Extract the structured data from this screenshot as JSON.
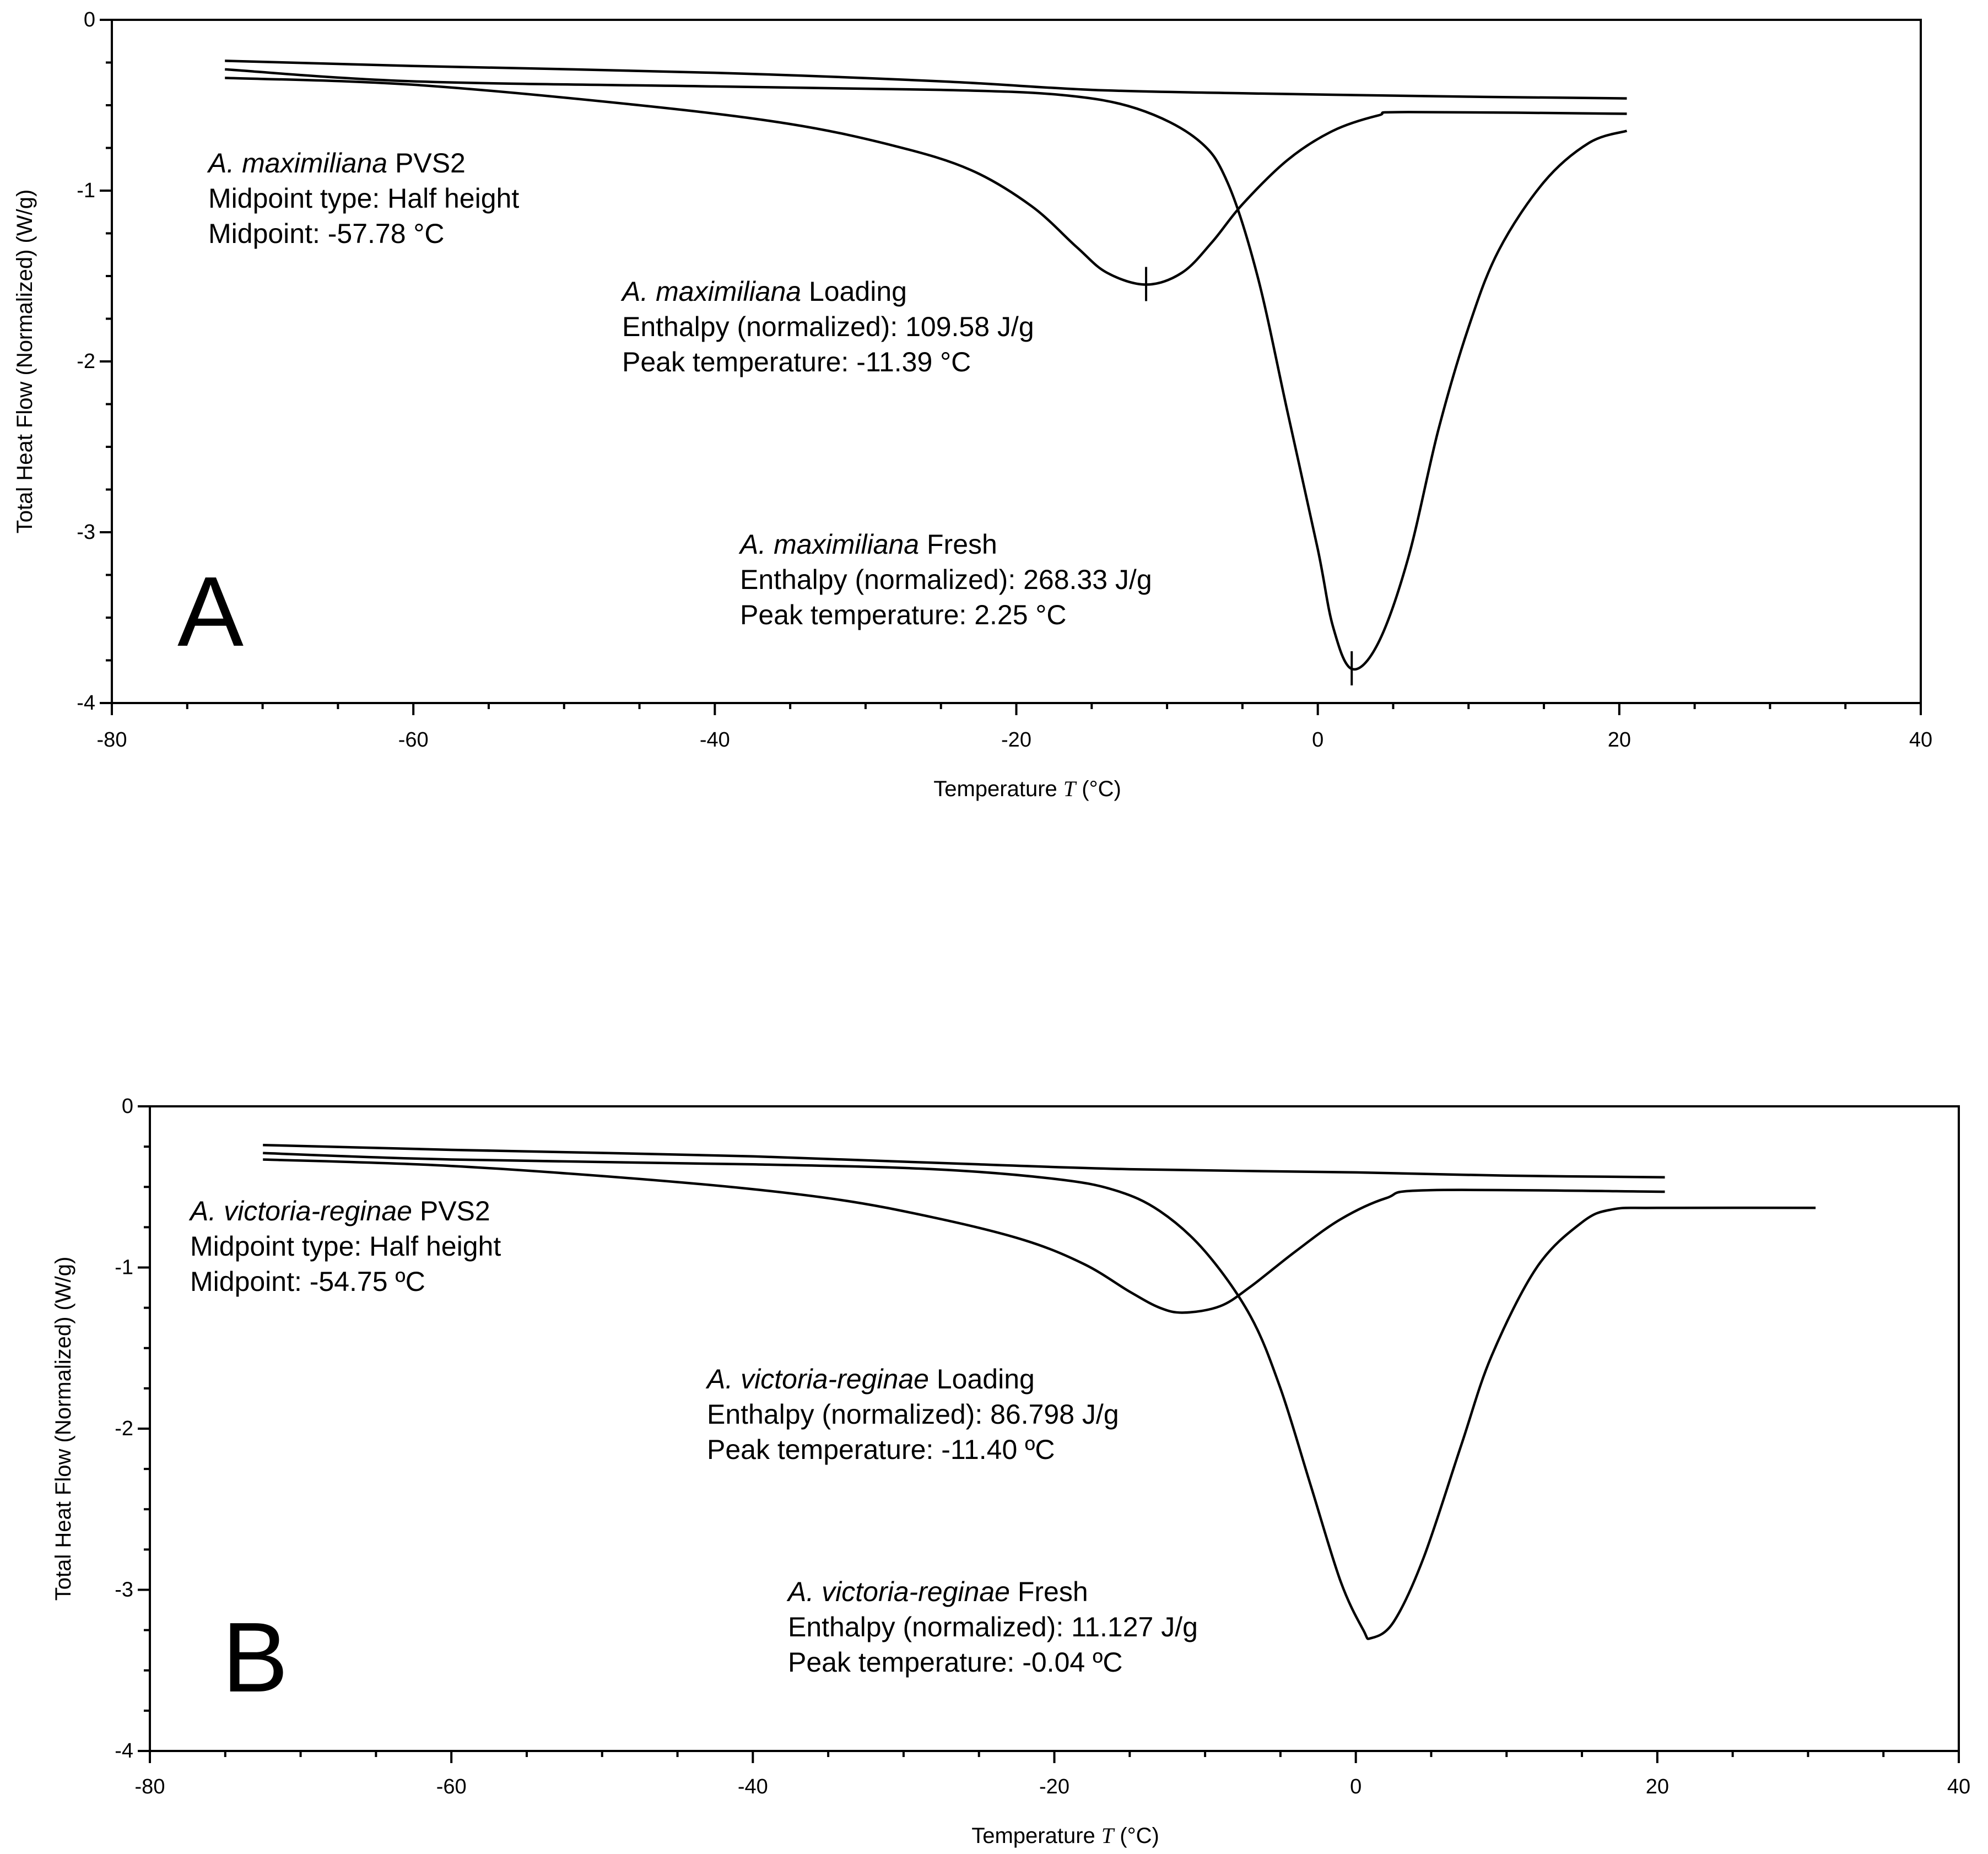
{
  "chart_data": [
    {
      "type": "line",
      "panel_label": "A",
      "xlabel_main": "Temperature",
      "xlabel_symbol": "T",
      "xlabel_unit": "(°C)",
      "ylabel": "Total Heat Flow (Normalized) (W/g)",
      "xlim": [
        -80,
        40
      ],
      "ylim": [
        -4,
        0
      ],
      "xticks": [
        -80,
        -60,
        -40,
        -20,
        0,
        20,
        40
      ],
      "yticks": [
        0,
        -1,
        -2,
        -3,
        -4
      ],
      "grid": false,
      "series": [
        {
          "name": "A. maximiliana PVS2",
          "points": [
            [
              -72.5,
              -0.24
            ],
            [
              -60,
              -0.27
            ],
            [
              -40,
              -0.31
            ],
            [
              -25,
              -0.36
            ],
            [
              -15,
              -0.41
            ],
            [
              -5,
              -0.43
            ],
            [
              10,
              -0.45
            ],
            [
              20.5,
              -0.46
            ]
          ]
        },
        {
          "name": "A. maximiliana Loading",
          "points": [
            [
              -72.5,
              -0.34
            ],
            [
              -60,
              -0.38
            ],
            [
              -45,
              -0.5
            ],
            [
              -35,
              -0.61
            ],
            [
              -28,
              -0.74
            ],
            [
              -23,
              -0.88
            ],
            [
              -19,
              -1.09
            ],
            [
              -16,
              -1.33
            ],
            [
              -14,
              -1.48
            ],
            [
              -11.39,
              -1.55
            ],
            [
              -9,
              -1.48
            ],
            [
              -7,
              -1.3
            ],
            [
              -5,
              -1.08
            ],
            [
              -2,
              -0.82
            ],
            [
              1,
              -0.65
            ],
            [
              4,
              -0.56
            ],
            [
              6,
              -0.54
            ],
            [
              20.5,
              -0.55
            ]
          ]
        },
        {
          "name": "A. maximiliana Fresh",
          "points": [
            [
              -72.5,
              -0.29
            ],
            [
              -60,
              -0.36
            ],
            [
              -40,
              -0.39
            ],
            [
              -25,
              -0.41
            ],
            [
              -17,
              -0.44
            ],
            [
              -12,
              -0.52
            ],
            [
              -8,
              -0.7
            ],
            [
              -6,
              -0.95
            ],
            [
              -4,
              -1.5
            ],
            [
              -2,
              -2.3
            ],
            [
              0,
              -3.1
            ],
            [
              1,
              -3.55
            ],
            [
              2.25,
              -3.8
            ],
            [
              4,
              -3.65
            ],
            [
              6,
              -3.15
            ],
            [
              8,
              -2.4
            ],
            [
              10,
              -1.8
            ],
            [
              12,
              -1.35
            ],
            [
              15,
              -0.95
            ],
            [
              18,
              -0.72
            ],
            [
              20.5,
              -0.65
            ]
          ]
        }
      ],
      "annotations": [
        {
          "title_italic": "A. maximiliana",
          "title_rest": " PVS2",
          "line2": "Midpoint type: Half height",
          "line3": "Midpoint: -57.78 °C"
        },
        {
          "title_italic": "A. maximiliana",
          "title_rest": " Loading",
          "line2": "Enthalpy (normalized): 109.58 J/g",
          "line3": "Peak temperature: -11.39 °C"
        },
        {
          "title_italic": "A. maximiliana",
          "title_rest": " Fresh",
          "line2": "Enthalpy (normalized): 268.33 J/g",
          "line3": "Peak temperature: 2.25 °C"
        }
      ],
      "peak_markers": [
        [
          -11.39,
          -1.55
        ],
        [
          2.25,
          -3.8
        ]
      ]
    },
    {
      "type": "line",
      "panel_label": "B",
      "xlabel_main": "Temperature",
      "xlabel_symbol": "T",
      "xlabel_unit": "(°C)",
      "ylabel": "Total Heat Flow (Normalized) (W/g)",
      "xlim": [
        -80,
        40
      ],
      "ylim": [
        -4,
        0
      ],
      "xticks": [
        -80,
        -60,
        -40,
        -20,
        0,
        20,
        40
      ],
      "yticks": [
        0,
        -1,
        -2,
        -3,
        -4
      ],
      "grid": false,
      "series": [
        {
          "name": "A. victoria-reginae PVS2",
          "points": [
            [
              -72.5,
              -0.24
            ],
            [
              -60,
              -0.27
            ],
            [
              -40,
              -0.31
            ],
            [
              -25,
              -0.36
            ],
            [
              -15,
              -0.39
            ],
            [
              0,
              -0.41
            ],
            [
              10,
              -0.43
            ],
            [
              20.5,
              -0.44
            ]
          ]
        },
        {
          "name": "A. victoria-reginae Loading",
          "points": [
            [
              -72.5,
              -0.33
            ],
            [
              -60,
              -0.37
            ],
            [
              -45,
              -0.47
            ],
            [
              -35,
              -0.57
            ],
            [
              -28,
              -0.69
            ],
            [
              -22,
              -0.83
            ],
            [
              -18,
              -0.98
            ],
            [
              -15,
              -1.15
            ],
            [
              -13,
              -1.25
            ],
            [
              -11.4,
              -1.28
            ],
            [
              -9,
              -1.24
            ],
            [
              -7,
              -1.12
            ],
            [
              -4,
              -0.9
            ],
            [
              -1,
              -0.7
            ],
            [
              2,
              -0.57
            ],
            [
              5,
              -0.52
            ],
            [
              20.5,
              -0.53
            ]
          ]
        },
        {
          "name": "A. victoria-reginae Fresh",
          "points": [
            [
              -72.5,
              -0.29
            ],
            [
              -60,
              -0.33
            ],
            [
              -40,
              -0.36
            ],
            [
              -28,
              -0.39
            ],
            [
              -20,
              -0.45
            ],
            [
              -16,
              -0.52
            ],
            [
              -13,
              -0.65
            ],
            [
              -10,
              -0.9
            ],
            [
              -7,
              -1.3
            ],
            [
              -5,
              -1.75
            ],
            [
              -3,
              -2.35
            ],
            [
              -1,
              -2.95
            ],
            [
              0.5,
              -3.25
            ],
            [
              1,
              -3.3
            ],
            [
              2.5,
              -3.2
            ],
            [
              4.5,
              -2.8
            ],
            [
              7,
              -2.1
            ],
            [
              9,
              -1.55
            ],
            [
              12,
              -1.0
            ],
            [
              15,
              -0.72
            ],
            [
              17,
              -0.64
            ],
            [
              20,
              -0.63
            ],
            [
              30.5,
              -0.63
            ]
          ]
        }
      ],
      "annotations": [
        {
          "title_italic": "A. victoria-reginae",
          "title_rest": " PVS2",
          "line2": "Midpoint type: Half height",
          "line3": "Midpoint: -54.75 ºC"
        },
        {
          "title_italic": "A. victoria-reginae",
          "title_rest": " Loading",
          "line2": "Enthalpy (normalized): 86.798 J/g",
          "line3": "Peak temperature: -11.40 ºC"
        },
        {
          "title_italic": "A. victoria-reginae",
          "title_rest": " Fresh",
          "line2": "Enthalpy (normalized): 11.127 J/g",
          "line3": "Peak temperature: -0.04 ºC"
        }
      ],
      "peak_markers": []
    }
  ]
}
